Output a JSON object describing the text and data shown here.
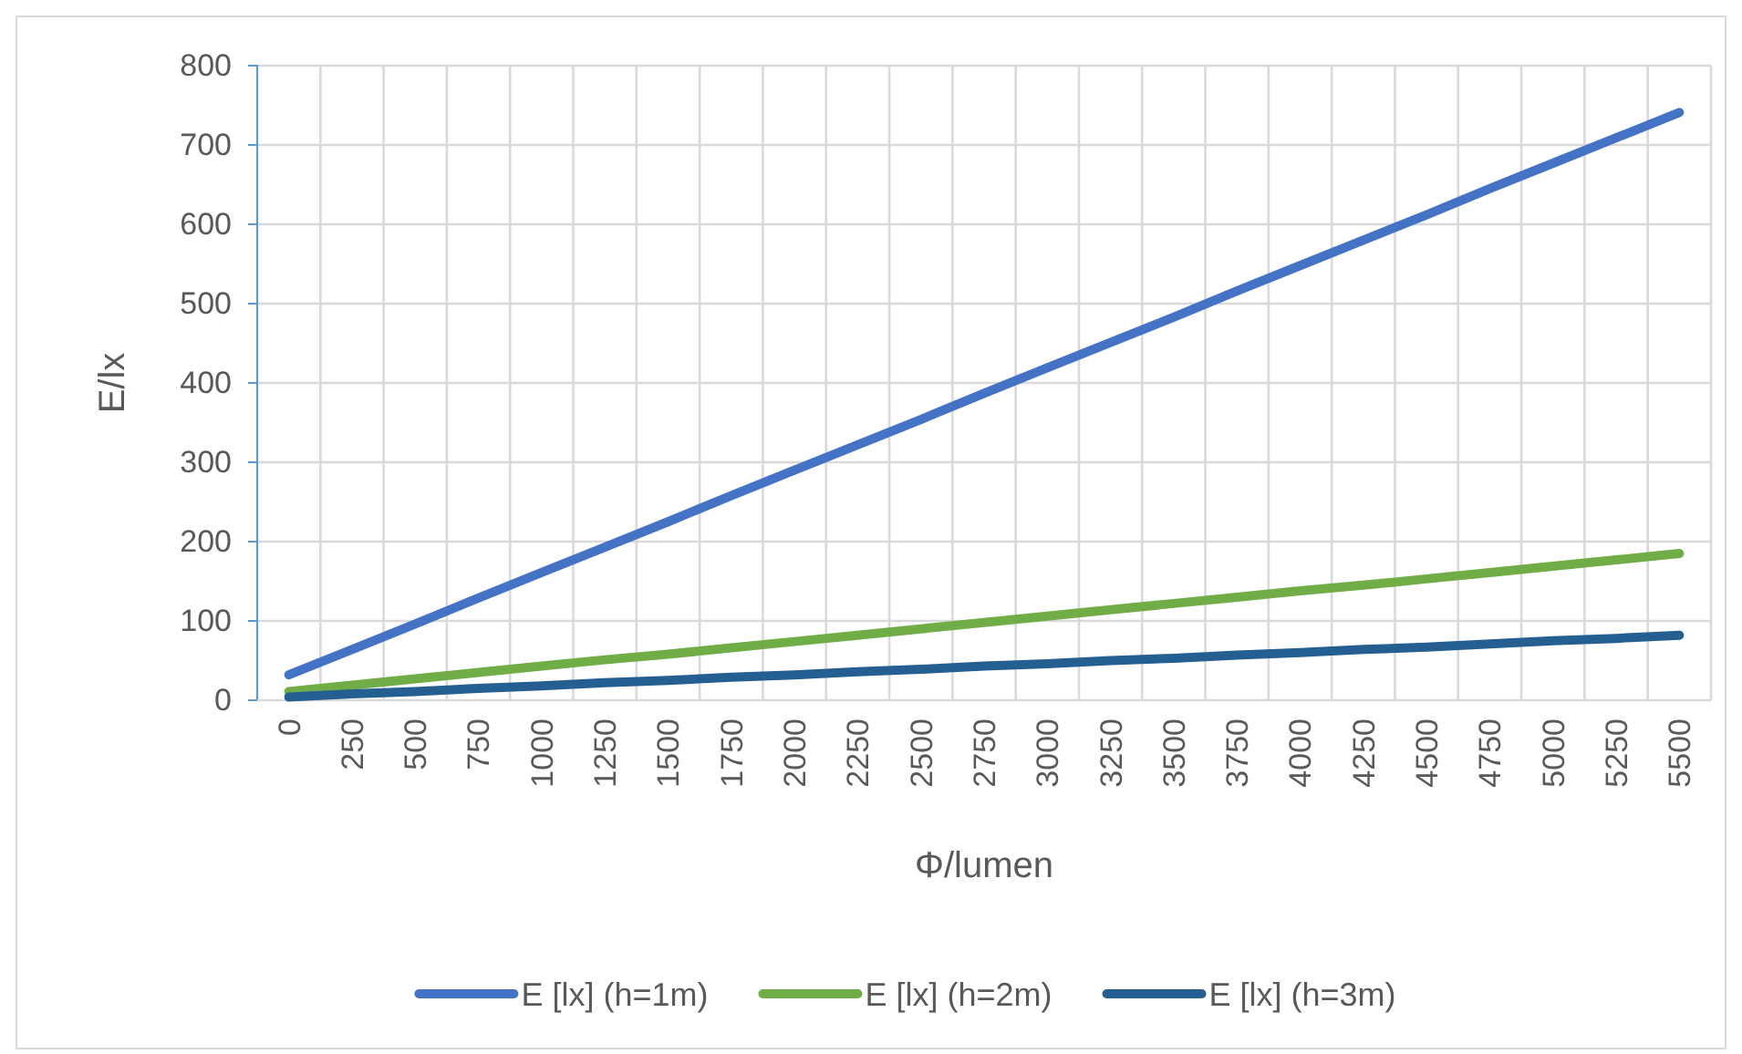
{
  "chart_data": {
    "type": "line",
    "xlabel": "Φ/lumen",
    "ylabel": "E/lx",
    "categories": [
      "0",
      "250",
      "500",
      "750",
      "1000",
      "1250",
      "1500",
      "1750",
      "2000",
      "2250",
      "2500",
      "2750",
      "3000",
      "3250",
      "3500",
      "3750",
      "4000",
      "4250",
      "4500",
      "4750",
      "5000",
      "5250",
      "5500"
    ],
    "series": [
      {
        "name": "E [lx] (h=1m)",
        "color": "#4472c4",
        "values": [
          32,
          64,
          96,
          129,
          161,
          193,
          225,
          258,
          290,
          322,
          354,
          387,
          419,
          451,
          483,
          516,
          548,
          580,
          612,
          645,
          677,
          709,
          741
        ]
      },
      {
        "name": "E [lx] (h=2m)",
        "color": "#70ad47",
        "values": [
          11,
          19,
          27,
          35,
          43,
          51,
          58,
          66,
          74,
          82,
          90,
          98,
          106,
          114,
          122,
          130,
          138,
          145,
          153,
          161,
          169,
          177,
          185
        ]
      },
      {
        "name": "E [lx] (h=3m)",
        "color": "#255e91",
        "values": [
          4,
          8,
          11,
          15,
          18,
          22,
          25,
          29,
          32,
          36,
          39,
          43,
          46,
          50,
          53,
          57,
          60,
          64,
          67,
          71,
          75,
          78,
          82
        ]
      }
    ],
    "ylim": [
      0,
      800
    ],
    "yticks": [
      0,
      100,
      200,
      300,
      400,
      500,
      600,
      700,
      800
    ],
    "grid": true,
    "legend": "bottom",
    "line_style": "solid",
    "marker": "none"
  }
}
